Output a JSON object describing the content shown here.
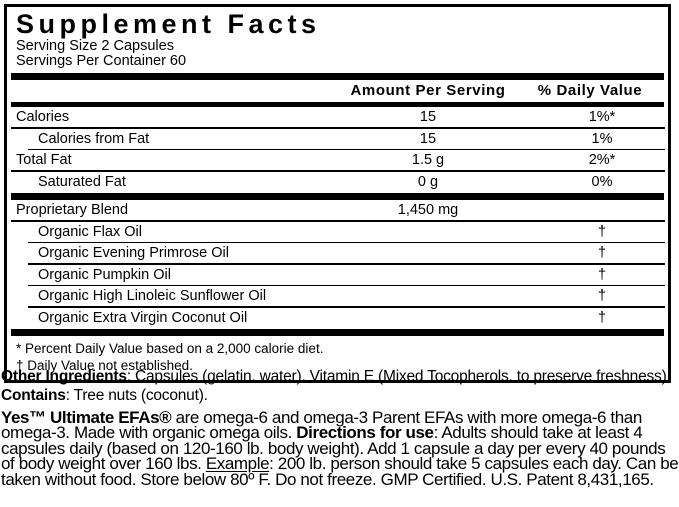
{
  "panel": {
    "title": "Supplement Facts",
    "serving_size": "Serving Size 2 Capsules",
    "servings_per_container": "Servings Per Container 60",
    "columns": {
      "amount": "Amount Per Serving",
      "dv": "% Daily Value"
    },
    "main_rows": [
      {
        "name": "Calories",
        "amount": "15",
        "dv": "1%*",
        "indent": false,
        "no_line": false
      },
      {
        "name": "Calories from Fat",
        "amount": "15",
        "dv": "1%",
        "indent": true,
        "no_line": false
      },
      {
        "name": "Total Fat",
        "amount": "1.5 g",
        "dv": "2%*",
        "indent": false,
        "no_line": false
      },
      {
        "name": "Saturated Fat",
        "amount": "0 g",
        "dv": "0%",
        "indent": true,
        "no_line": true
      }
    ],
    "blend_rows": [
      {
        "name": "Proprietary Blend",
        "amount": "1,450 mg",
        "dv": "",
        "indent": false,
        "no_line": false
      },
      {
        "name": "Organic Flax Oil",
        "amount": "",
        "dv": "†",
        "indent": true,
        "no_line": false
      },
      {
        "name": "Organic Evening Primrose Oil",
        "amount": "",
        "dv": "†",
        "indent": true,
        "no_line": false
      },
      {
        "name": "Organic Pumpkin Oil",
        "amount": "",
        "dv": "†",
        "indent": true,
        "no_line": false
      },
      {
        "name": "Organic High Linoleic Sunflower Oil",
        "amount": "",
        "dv": "†",
        "indent": true,
        "no_line": false
      },
      {
        "name": "Organic Extra Virgin Coconut Oil",
        "amount": "",
        "dv": "†",
        "indent": true,
        "no_line": true
      }
    ],
    "footnotes": [
      "* Percent Daily Value based on a 2,000 calorie diet.",
      "† Daily Value not established."
    ]
  },
  "other_ingredients": {
    "label": "Other Ingredients",
    "text": ": Capsules (gelatin, water), Vitamin E (Mixed Tocopherols, to preserve freshness)."
  },
  "contains_line": {
    "label": "Contains",
    "text": ": Tree nuts (coconut)."
  },
  "description": {
    "segments": [
      {
        "text": "Yes™ Ultimate EFAs®",
        "bold": true
      },
      {
        "text": " are omega-6 and omega-3 Parent EFAs with more omega-6 than omega-3. Made with organic omega oils. "
      },
      {
        "text": "Directions for use",
        "bold": true
      },
      {
        "text": ": Adults should take at least 4 capsules daily (based on 120-160 lb. body weight). Add 1 capsule a day per every 40 pounds of body weight over 160 lbs. "
      },
      {
        "text": "Example",
        "underline": true
      },
      {
        "text": ": 200 lb. person should take 5 capsules each day. Can be taken without food. Store below 80º F. Do not freeze. GMP Certified. U.S. Patent 8,431,165."
      }
    ]
  }
}
